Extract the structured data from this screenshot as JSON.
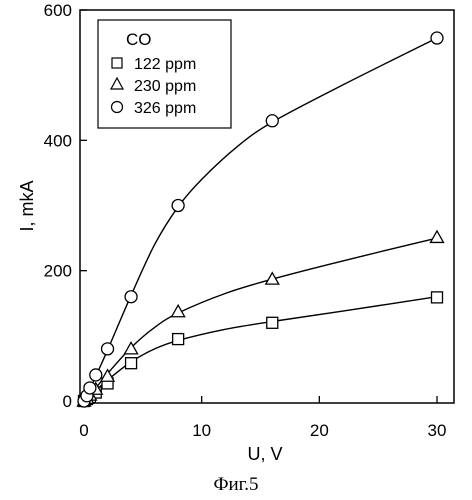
{
  "chart_data": {
    "type": "scatter",
    "title": "",
    "xlabel": "U, V",
    "ylabel": "I, mkA",
    "xlim": [
      -1,
      32
    ],
    "ylim": [
      0,
      600
    ],
    "x_ticks": [
      0,
      10,
      20,
      30
    ],
    "y_ticks": [
      0,
      200,
      400,
      600
    ],
    "grid": false,
    "legend": {
      "title": "CO",
      "position": "top-left"
    },
    "series": [
      {
        "name": "122 ppm",
        "marker": "square",
        "points": [
          [
            0,
            0
          ],
          [
            0.25,
            3
          ],
          [
            0.5,
            6
          ],
          [
            1,
            13
          ],
          [
            2,
            27
          ],
          [
            4,
            58
          ],
          [
            8,
            95
          ],
          [
            16,
            120
          ],
          [
            30,
            159
          ]
        ],
        "curve": [
          [
            0,
            0
          ],
          [
            0.5,
            8
          ],
          [
            1,
            16
          ],
          [
            2,
            32
          ],
          [
            4,
            60
          ],
          [
            6,
            80
          ],
          [
            8,
            93
          ],
          [
            12,
            110
          ],
          [
            16,
            122
          ],
          [
            22,
            138
          ],
          [
            30,
            160
          ]
        ]
      },
      {
        "name": "230 ppm",
        "marker": "triangle",
        "points": [
          [
            0,
            0
          ],
          [
            0.25,
            4
          ],
          [
            0.5,
            9
          ],
          [
            1,
            18
          ],
          [
            2,
            38
          ],
          [
            4,
            80
          ],
          [
            8,
            137
          ],
          [
            16,
            187
          ],
          [
            30,
            251
          ]
        ],
        "curve": [
          [
            0,
            0
          ],
          [
            0.5,
            10
          ],
          [
            1,
            20
          ],
          [
            2,
            42
          ],
          [
            4,
            82
          ],
          [
            6,
            113
          ],
          [
            8,
            135
          ],
          [
            12,
            165
          ],
          [
            16,
            187
          ],
          [
            22,
            215
          ],
          [
            30,
            250
          ]
        ]
      },
      {
        "name": "326 ppm",
        "marker": "circle",
        "points": [
          [
            0,
            0
          ],
          [
            0.25,
            8
          ],
          [
            0.5,
            20
          ],
          [
            1,
            40
          ],
          [
            2,
            80
          ],
          [
            4,
            160
          ],
          [
            8,
            300
          ],
          [
            16,
            430
          ],
          [
            30,
            557
          ]
        ],
        "curve": [
          [
            0,
            0
          ],
          [
            0.5,
            18
          ],
          [
            1,
            38
          ],
          [
            2,
            78
          ],
          [
            4,
            162
          ],
          [
            6,
            240
          ],
          [
            8,
            298
          ],
          [
            10,
            340
          ],
          [
            13,
            390
          ],
          [
            16,
            428
          ],
          [
            22,
            485
          ],
          [
            30,
            557
          ]
        ]
      }
    ]
  },
  "caption": "Фиг.5",
  "colors": {
    "ink": "#000000",
    "background": "#ffffff"
  }
}
